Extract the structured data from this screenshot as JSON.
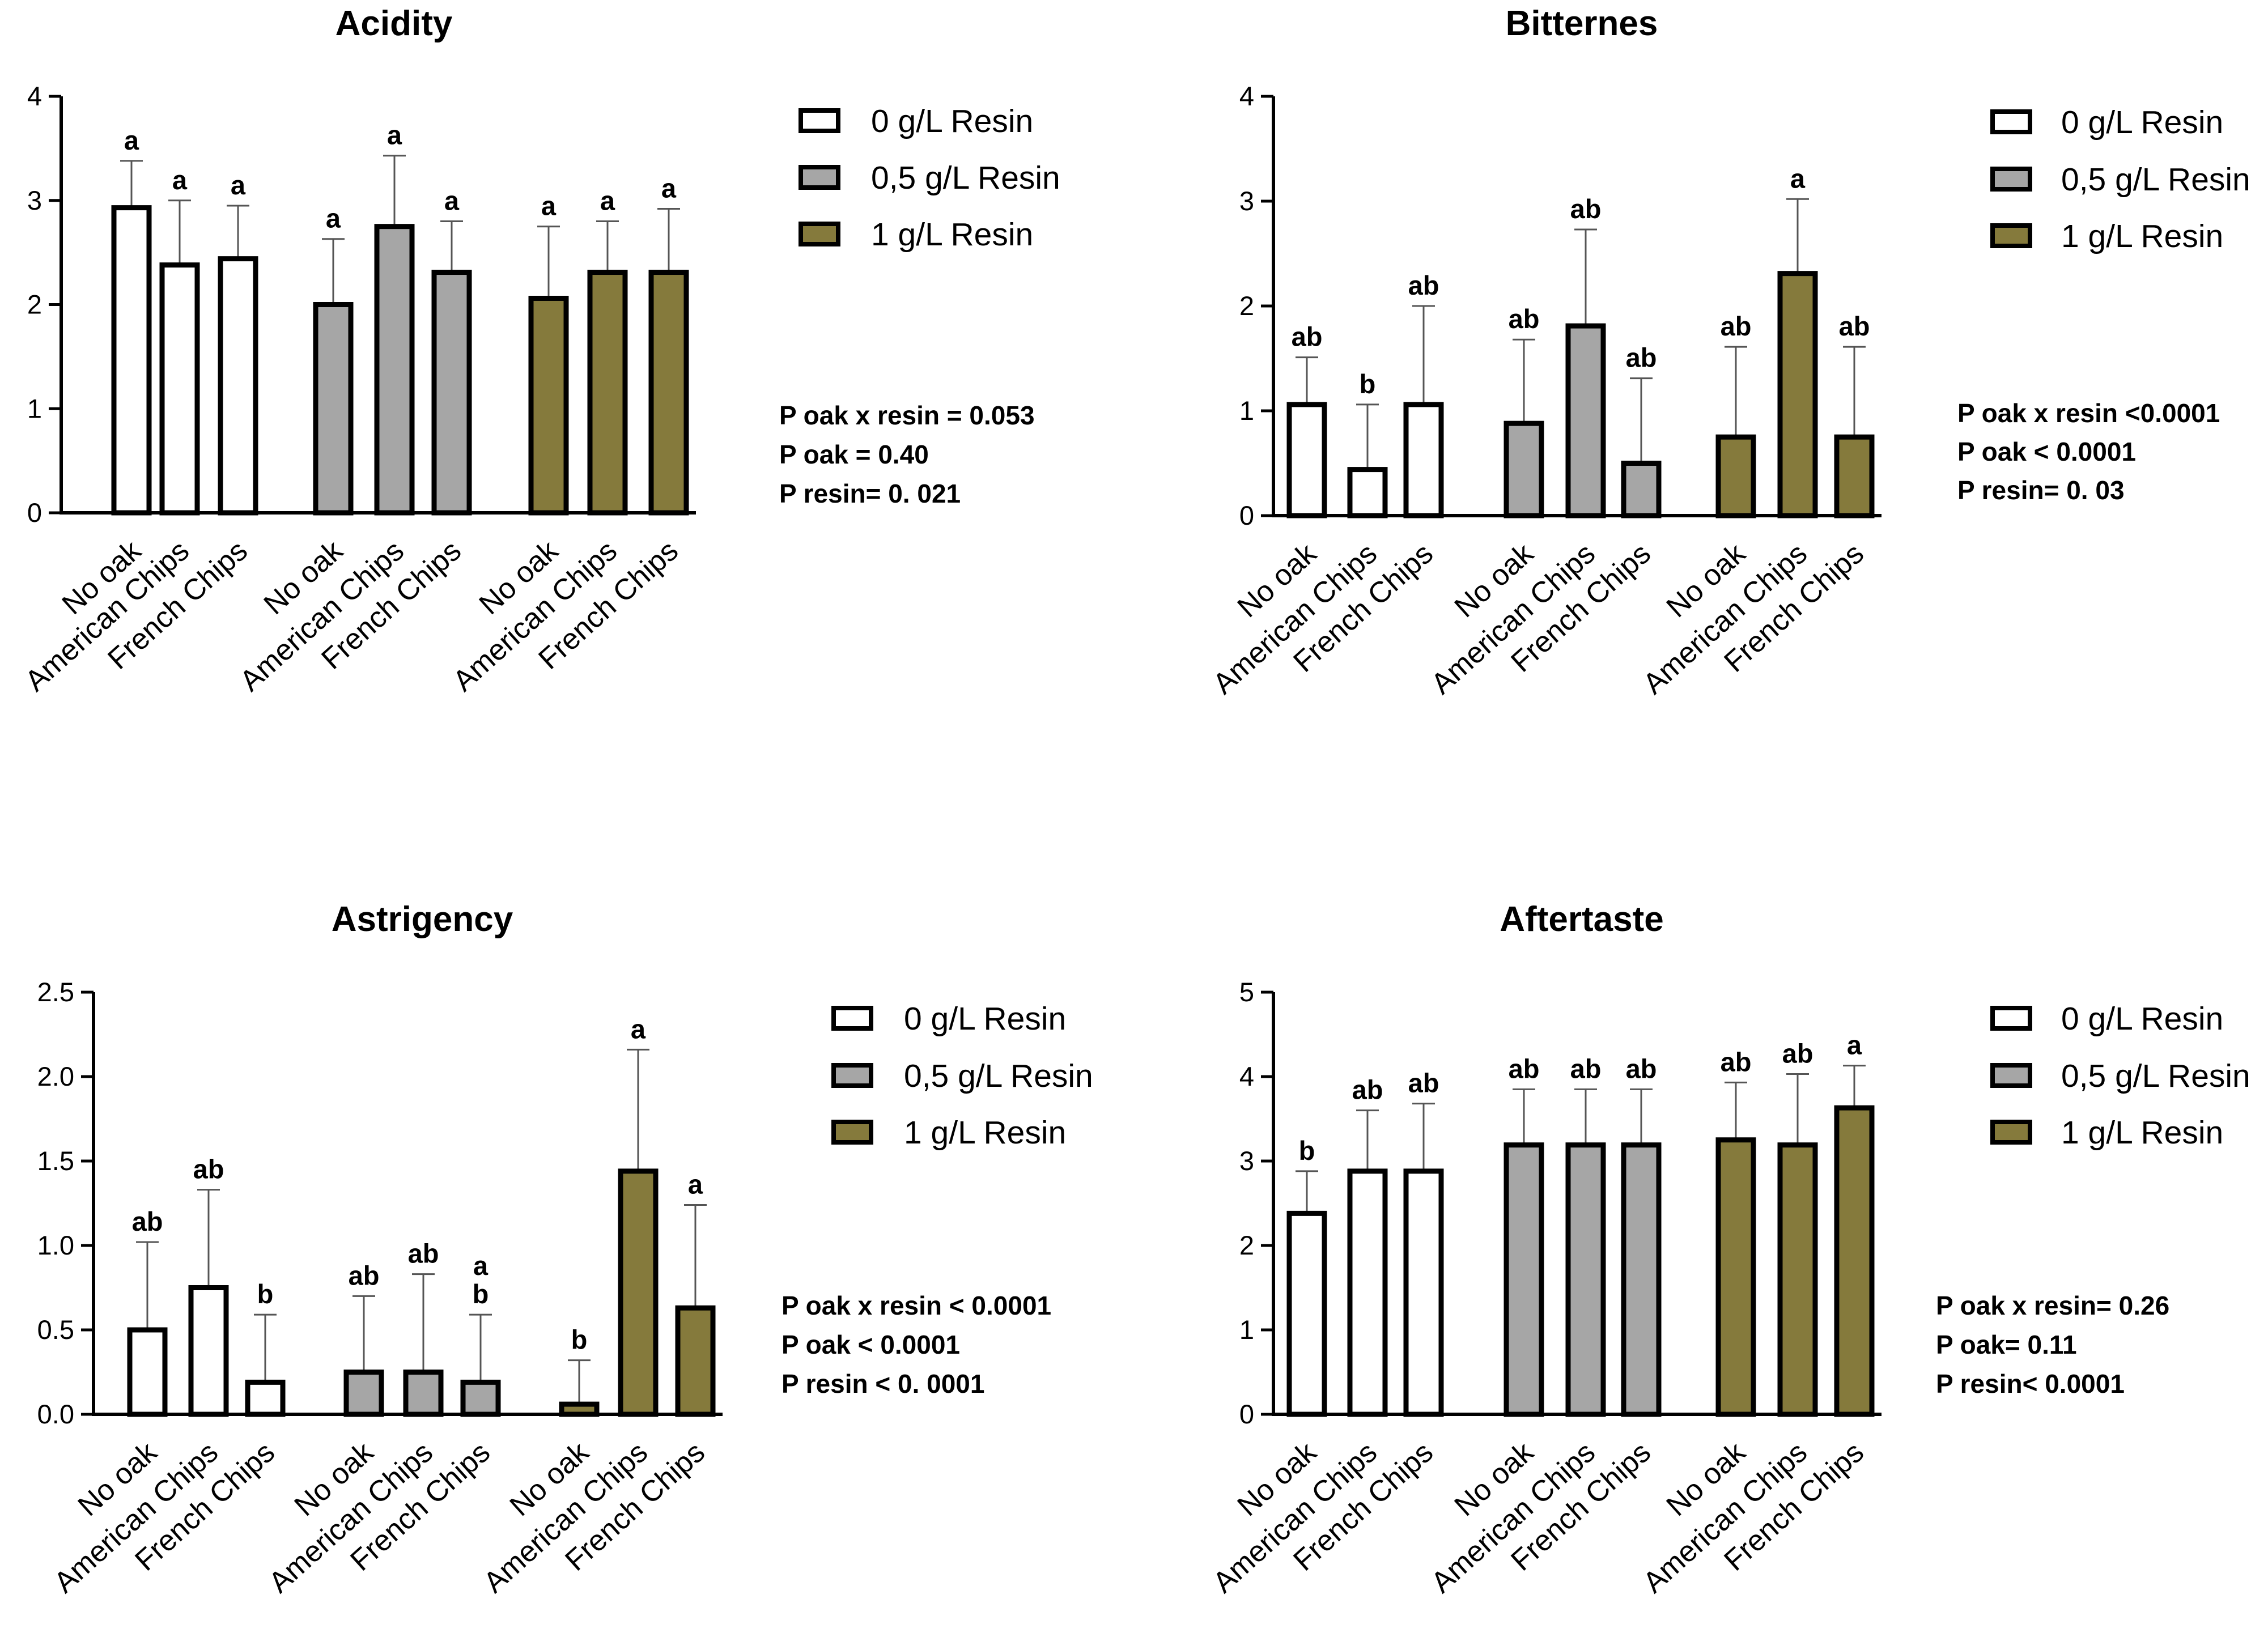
{
  "legend_entries": [
    "0 g/L Resin",
    "0,5 g/L Resin",
    "1 g/L Resin"
  ],
  "colors": {
    "0 g/L Resin": "#ffffff",
    "0,5 g/L Resin": "#a6a6a6",
    "1 g/L Resin": "#857a3c",
    "outline": "#000000"
  },
  "chart_data": [
    {
      "type": "bar",
      "title": "Acidity",
      "categories": [
        "No oak",
        "American Chips",
        "French Chips",
        "No oak",
        "American Chips",
        "French Chips",
        "No oak",
        "American Chips",
        "French Chips"
      ],
      "groups": [
        "0 g/L Resin",
        "0,5 g/L Resin",
        "1 g/L Resin"
      ],
      "values": [
        2.93,
        2.38,
        2.44,
        2.0,
        2.75,
        2.31,
        2.06,
        2.31,
        2.31
      ],
      "errors": [
        0.45,
        0.62,
        0.51,
        0.63,
        0.68,
        0.49,
        0.69,
        0.49,
        0.61
      ],
      "significance": [
        "a",
        "a",
        "a",
        "a",
        "a",
        "a",
        "a",
        "a",
        "a"
      ],
      "ylim": [
        0,
        4
      ],
      "yticks": [
        "0",
        "1",
        "2",
        "3",
        "4"
      ],
      "stats": [
        "P oak x resin = 0.053",
        "P oak = 0.40",
        "P resin= 0. 021"
      ]
    },
    {
      "type": "bar",
      "title": "Bitternes",
      "categories": [
        "No oak",
        "American Chips",
        "French Chips",
        "No oak",
        "American Chips",
        "French Chips",
        "No oak",
        "American Chips",
        "French Chips"
      ],
      "groups": [
        "0 g/L Resin",
        "0,5 g/L Resin",
        "1 g/L Resin"
      ],
      "values": [
        1.06,
        0.44,
        1.06,
        0.88,
        1.81,
        0.5,
        0.75,
        2.31,
        0.75
      ],
      "errors": [
        0.45,
        0.62,
        0.94,
        0.8,
        0.92,
        0.81,
        0.86,
        0.71,
        0.86
      ],
      "significance": [
        "ab",
        "b",
        "ab",
        "ab",
        "ab",
        "ab",
        "ab",
        "a",
        "ab"
      ],
      "ylim": [
        0,
        4
      ],
      "yticks": [
        "0",
        "1",
        "2",
        "3",
        "4"
      ],
      "stats": [
        "P oak x resin <0.0001",
        "P oak < 0.0001",
        "P resin= 0. 03"
      ]
    },
    {
      "type": "bar",
      "title": "Astrigency",
      "categories": [
        "No oak",
        "American Chips",
        "French Chips",
        "No oak",
        "American Chips",
        "French Chips",
        "No oak",
        "American Chips",
        "French Chips"
      ],
      "groups": [
        "0 g/L Resin",
        "0,5 g/L Resin",
        "1 g/L Resin"
      ],
      "values": [
        0.5,
        0.75,
        0.19,
        0.25,
        0.25,
        0.19,
        0.06,
        1.44,
        0.63
      ],
      "errors": [
        0.52,
        0.58,
        0.4,
        0.45,
        0.58,
        0.4,
        0.26,
        0.72,
        0.61
      ],
      "significance": [
        "ab",
        "ab",
        "b",
        "ab",
        "ab",
        "a\nb",
        "b",
        "a",
        "a"
      ],
      "ylim": [
        0,
        2.5
      ],
      "yticks": [
        "0.0",
        "0.5",
        "1.0",
        "1.5",
        "2.0",
        "2.5"
      ],
      "stats": [
        "P oak x resin < 0.0001",
        "P oak < 0.0001",
        "P resin < 0. 0001"
      ]
    },
    {
      "type": "bar",
      "title": "Aftertaste",
      "categories": [
        "No oak",
        "American Chips",
        "French Chips",
        "No oak",
        "American Chips",
        "French Chips",
        "No oak",
        "American Chips",
        "French Chips"
      ],
      "groups": [
        "0 g/L Resin",
        "0,5 g/L Resin",
        "1 g/L Resin"
      ],
      "values": [
        2.38,
        2.88,
        2.88,
        3.19,
        3.19,
        3.19,
        3.25,
        3.19,
        3.63
      ],
      "errors": [
        0.5,
        0.72,
        0.8,
        0.66,
        0.66,
        0.66,
        0.68,
        0.84,
        0.5
      ],
      "significance": [
        "b",
        "ab",
        "ab",
        "ab",
        "ab",
        "ab",
        "ab",
        "ab",
        "a"
      ],
      "ylim": [
        0,
        5
      ],
      "yticks": [
        "0",
        "1",
        "2",
        "3",
        "4",
        "5"
      ],
      "stats": [
        "P oak x resin= 0.26",
        "P oak= 0.11",
        "P resin< 0.0001"
      ]
    }
  ]
}
